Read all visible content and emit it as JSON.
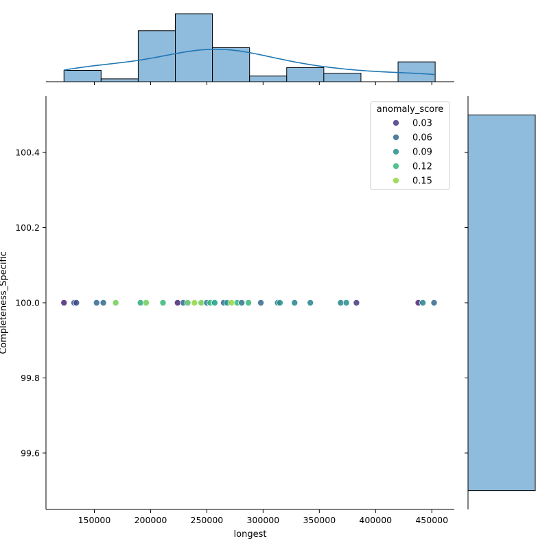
{
  "chart_data": {
    "type": "scatter",
    "xlabel": "longest",
    "ylabel": "Completeness_Specific",
    "xlim": [
      107000,
      470000
    ],
    "ylim": [
      99.45,
      100.55
    ],
    "x_ticks": [
      150000,
      200000,
      250000,
      300000,
      350000,
      400000,
      450000
    ],
    "y_ticks": [
      99.6,
      99.8,
      100.0,
      100.2,
      100.4
    ],
    "x_tick_labels": [
      "150000",
      "200000",
      "250000",
      "300000",
      "350000",
      "400000",
      "450000"
    ],
    "y_tick_labels": [
      "99.6",
      "99.8",
      "100.0",
      "100.2",
      "100.4"
    ],
    "legend": {
      "title": "anomaly_score",
      "placement": "top-right",
      "entries": [
        {
          "label": "0.03",
          "value": 0.03
        },
        {
          "label": "0.06",
          "value": 0.06
        },
        {
          "label": "0.09",
          "value": 0.09
        },
        {
          "label": "0.12",
          "value": 0.12
        },
        {
          "label": "0.15",
          "value": 0.15
        }
      ]
    },
    "colormap": "viridis",
    "color_range": [
      0.0,
      0.18
    ],
    "points": [
      {
        "x": 123000,
        "y": 100.0,
        "c": 0.02
      },
      {
        "x": 132000,
        "y": 100.0,
        "c": 0.05
      },
      {
        "x": 134000,
        "y": 100.0,
        "c": 0.04
      },
      {
        "x": 152000,
        "y": 100.0,
        "c": 0.06
      },
      {
        "x": 158000,
        "y": 100.0,
        "c": 0.06
      },
      {
        "x": 169000,
        "y": 100.0,
        "c": 0.14
      },
      {
        "x": 191000,
        "y": 100.0,
        "c": 0.11
      },
      {
        "x": 196000,
        "y": 100.0,
        "c": 0.14
      },
      {
        "x": 211000,
        "y": 100.0,
        "c": 0.12
      },
      {
        "x": 224000,
        "y": 100.0,
        "c": 0.02
      },
      {
        "x": 229000,
        "y": 100.0,
        "c": 0.06
      },
      {
        "x": 233000,
        "y": 100.0,
        "c": 0.13
      },
      {
        "x": 239000,
        "y": 100.0,
        "c": 0.15
      },
      {
        "x": 245000,
        "y": 100.0,
        "c": 0.14
      },
      {
        "x": 250000,
        "y": 100.0,
        "c": 0.07
      },
      {
        "x": 253000,
        "y": 100.0,
        "c": 0.12
      },
      {
        "x": 257000,
        "y": 100.0,
        "c": 0.1
      },
      {
        "x": 265000,
        "y": 100.0,
        "c": 0.06
      },
      {
        "x": 268000,
        "y": 100.0,
        "c": 0.09
      },
      {
        "x": 272000,
        "y": 100.0,
        "c": 0.15
      },
      {
        "x": 277000,
        "y": 100.0,
        "c": 0.12
      },
      {
        "x": 281000,
        "y": 100.0,
        "c": 0.07
      },
      {
        "x": 287000,
        "y": 100.0,
        "c": 0.12
      },
      {
        "x": 298000,
        "y": 100.0,
        "c": 0.06
      },
      {
        "x": 313000,
        "y": 100.0,
        "c": 0.07
      },
      {
        "x": 315000,
        "y": 100.0,
        "c": 0.09
      },
      {
        "x": 328000,
        "y": 100.0,
        "c": 0.08
      },
      {
        "x": 342000,
        "y": 100.0,
        "c": 0.08
      },
      {
        "x": 369000,
        "y": 100.0,
        "c": 0.08
      },
      {
        "x": 374000,
        "y": 100.0,
        "c": 0.09
      },
      {
        "x": 383000,
        "y": 100.0,
        "c": 0.03
      },
      {
        "x": 438000,
        "y": 100.0,
        "c": 0.02
      },
      {
        "x": 442000,
        "y": 100.0,
        "c": 0.08
      },
      {
        "x": 452000,
        "y": 100.0,
        "c": 0.06
      }
    ],
    "marginal_x_histogram": {
      "bin_edges": [
        123000,
        156000,
        189000,
        222000,
        255000,
        288000,
        321000,
        354000,
        387000,
        420000,
        453000
      ],
      "counts": [
        2,
        0.5,
        9,
        12,
        6,
        1,
        2.5,
        1.5,
        0,
        3.5
      ],
      "kde": true
    },
    "marginal_y_histogram": {
      "bin_edges": [
        99.5,
        100.5
      ],
      "counts": [
        34
      ]
    },
    "colors": {
      "hist_fill": "#8fbbdc",
      "hist_edge": "#000000",
      "kde_line": "#1f77b4"
    }
  }
}
